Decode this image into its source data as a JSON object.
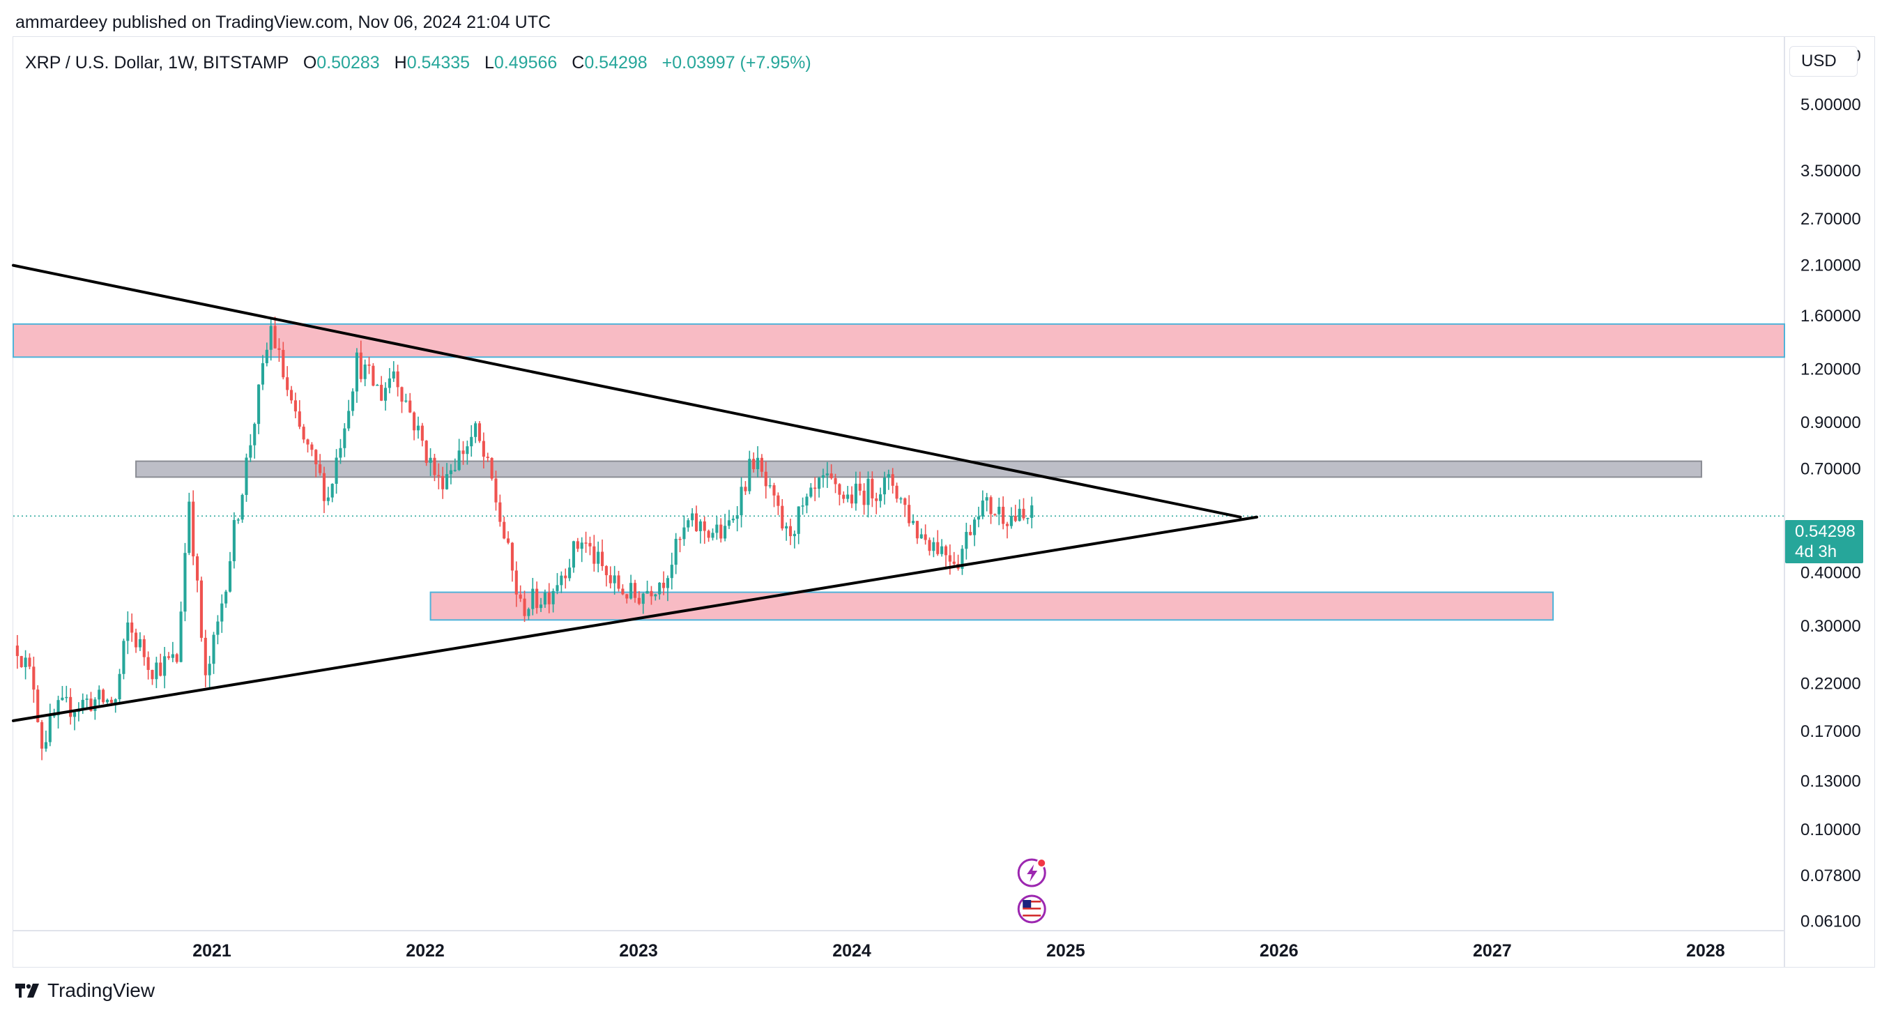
{
  "header": {
    "published_by": "ammardeey published on TradingView.com, Nov 06, 2024 21:04 UTC"
  },
  "legend": {
    "symbol": "XRP / U.S. Dollar, 1W, BITSTAMP",
    "o_label": "O",
    "o_value": "0.50283",
    "h_label": "H",
    "h_value": "0.54335",
    "l_label": "L",
    "l_value": "0.49566",
    "c_label": "C",
    "c_value": "0.54298",
    "change": "+0.03997 (+7.95%)"
  },
  "toolbar": {
    "currency": "USD"
  },
  "last_price": {
    "value": "0.54298",
    "countdown": "4d 3h"
  },
  "footer": {
    "brand": "TradingView"
  },
  "colors": {
    "up": "#26a69a",
    "down": "#ef5350",
    "zone_red_fill": "#f8bbc4",
    "zone_red_border": "#4fb3d9",
    "zone_grey_fill": "#b9bbc4",
    "zone_grey_border": "#8a8c94",
    "trendline": "#000000"
  },
  "chart_data": {
    "type": "candlestick",
    "title": "",
    "scale": "log",
    "x_axis": {
      "ticks": [
        "2021",
        "2022",
        "2023",
        "2024",
        "2025",
        "2026",
        "2027",
        "2028"
      ]
    },
    "y_axis": {
      "ticks": [
        "6.50000",
        "5.00000",
        "3.50000",
        "2.70000",
        "2.10000",
        "1.60000",
        "1.20000",
        "0.90000",
        "0.70000",
        "0.40000",
        "0.30000",
        "0.22000",
        "0.17000",
        "0.13000",
        "0.10000",
        "0.07800",
        "0.06100"
      ],
      "range": [
        0.058,
        7.2
      ]
    },
    "x_range": [
      "2020-01-27",
      "2028-05-15"
    ],
    "current_price": 0.54298,
    "series_anchors": [
      [
        "2020-02-03",
        0.27
      ],
      [
        "2020-03-02",
        0.22
      ],
      [
        "2020-03-16",
        0.16
      ],
      [
        "2020-04-13",
        0.19
      ],
      [
        "2020-06-01",
        0.2
      ],
      [
        "2020-07-20",
        0.2
      ],
      [
        "2020-08-10",
        0.3
      ],
      [
        "2020-09-21",
        0.24
      ],
      [
        "2020-11-02",
        0.25
      ],
      [
        "2020-11-23",
        0.6
      ],
      [
        "2020-12-21",
        0.22
      ],
      [
        "2021-01-11",
        0.3
      ],
      [
        "2021-02-08",
        0.5
      ],
      [
        "2021-04-12",
        1.5
      ],
      [
        "2021-05-24",
        0.9
      ],
      [
        "2021-07-19",
        0.6
      ],
      [
        "2021-09-06",
        1.25
      ],
      [
        "2021-10-18",
        1.05
      ],
      [
        "2021-11-08",
        1.2
      ],
      [
        "2021-12-20",
        0.85
      ],
      [
        "2022-01-24",
        0.65
      ],
      [
        "2022-03-28",
        0.85
      ],
      [
        "2022-04-25",
        0.65
      ],
      [
        "2022-06-13",
        0.33
      ],
      [
        "2022-08-01",
        0.36
      ],
      [
        "2022-09-26",
        0.48
      ],
      [
        "2022-11-14",
        0.38
      ],
      [
        "2022-12-26",
        0.35
      ],
      [
        "2023-02-13",
        0.39
      ],
      [
        "2023-03-27",
        0.52
      ],
      [
        "2023-05-29",
        0.49
      ],
      [
        "2023-07-17",
        0.74
      ],
      [
        "2023-09-11",
        0.49
      ],
      [
        "2023-11-13",
        0.65
      ],
      [
        "2023-12-25",
        0.6
      ],
      [
        "2024-03-11",
        0.65
      ],
      [
        "2024-04-22",
        0.5
      ],
      [
        "2024-07-01",
        0.43
      ],
      [
        "2024-08-05",
        0.58
      ],
      [
        "2024-10-21",
        0.53
      ],
      [
        "2024-11-04",
        0.54298
      ]
    ],
    "annotations": {
      "trendlines": [
        {
          "name": "descending-resistance",
          "from": [
            "2020-01-27",
            2.1
          ],
          "to": [
            "2025-10-27",
            0.54
          ]
        },
        {
          "name": "ascending-support",
          "from": [
            "2020-01-27",
            0.18
          ],
          "to": [
            "2025-11-24",
            0.54
          ]
        }
      ],
      "zones": [
        {
          "name": "upper-supply-zone",
          "style": "red",
          "from": "2020-01-27",
          "to": "2028-05-15",
          "low": 1.28,
          "high": 1.53
        },
        {
          "name": "mid-resistance-zone",
          "style": "grey",
          "from": "2020-08-24",
          "to": "2027-12-25",
          "low": 0.67,
          "high": 0.73
        },
        {
          "name": "lower-demand-zone",
          "style": "red",
          "from": "2022-01-10",
          "to": "2027-04-15",
          "low": 0.31,
          "high": 0.36
        }
      ]
    },
    "event_markers": [
      "lightning-event-icon",
      "us-flag-event-icon"
    ]
  }
}
